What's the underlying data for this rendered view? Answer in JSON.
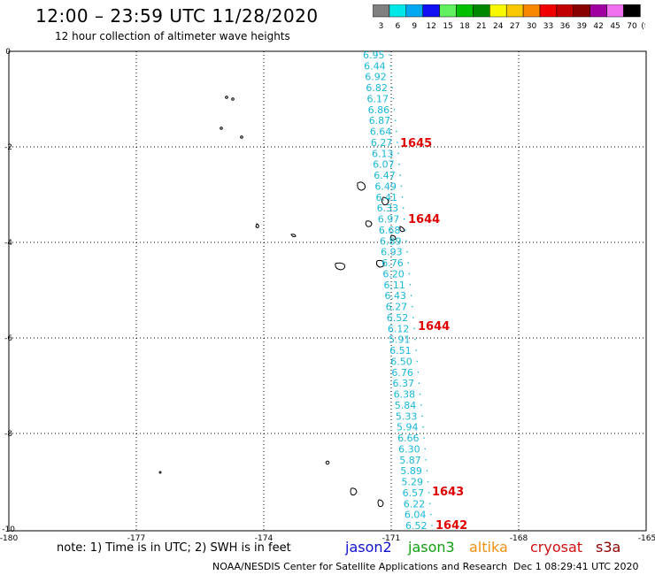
{
  "header": {
    "title": "12:00 – 23:59 UTC 11/28/2020",
    "subtitle": "12 hour collection of altimeter wave heights"
  },
  "legend": {
    "unit": "(ft)",
    "items": [
      {
        "label": "3",
        "color": "#808080"
      },
      {
        "label": "6",
        "color": "#00e8e8"
      },
      {
        "label": "9",
        "color": "#00a8f0"
      },
      {
        "label": "12",
        "color": "#1010f0"
      },
      {
        "label": "15",
        "color": "#60f060"
      },
      {
        "label": "18",
        "color": "#00c000"
      },
      {
        "label": "21",
        "color": "#008800"
      },
      {
        "label": "24",
        "color": "#f8f800"
      },
      {
        "label": "27",
        "color": "#f8c800"
      },
      {
        "label": "30",
        "color": "#f88800"
      },
      {
        "label": "33",
        "color": "#f00000"
      },
      {
        "label": "36",
        "color": "#c00000"
      },
      {
        "label": "39",
        "color": "#880000"
      },
      {
        "label": "42",
        "color": "#a000a0"
      },
      {
        "label": "45",
        "color": "#f070f0"
      },
      {
        "label": "70",
        "color": "#000000"
      }
    ]
  },
  "map": {
    "longitudes": [
      "-180",
      "-177",
      "-174",
      "-171",
      "-168",
      "-165"
    ],
    "latitudes": [
      "0",
      "-2",
      "-4",
      "-6",
      "-8",
      "-10"
    ],
    "track_color": "#18b8d8",
    "time_color": "#e00000",
    "wave_heights": [
      "6.95",
      "6.44",
      "6.92",
      "6.82",
      "6.17",
      "6.86",
      "6.87",
      "6.64",
      "6.27",
      "6.13",
      "6.07",
      "6.47",
      "6.49",
      "6.41",
      "6.33",
      "6.97",
      "6.68",
      "6.89",
      "6.93",
      "6.76",
      "6.20",
      "6.11",
      "6.43",
      "6.27",
      "6.52",
      "6.12",
      "5.91",
      "6.51",
      "6.50",
      "6.76",
      "6.37",
      "6.38",
      "5.84",
      "5.33",
      "5.94",
      "6.66",
      "6.30",
      "5.87",
      "5.89",
      "5.29",
      "6.57",
      "6.22",
      "6.04",
      "6.52"
    ],
    "times": [
      "1645",
      "1644",
      "1644",
      "1643",
      "1642"
    ]
  },
  "footer": {
    "note": "note: 1) Time is in UTC; 2) SWH is in feet",
    "satellites": {
      "jason2": "jason2",
      "jason3": "jason3",
      "altika": "altika",
      "cryosat": "cryosat",
      "s3a": "s3a"
    },
    "credit": "NOAA/NESDIS Center for Satellite Applications and Research",
    "timestamp": "Dec  1 08:29:41 UTC 2020"
  }
}
